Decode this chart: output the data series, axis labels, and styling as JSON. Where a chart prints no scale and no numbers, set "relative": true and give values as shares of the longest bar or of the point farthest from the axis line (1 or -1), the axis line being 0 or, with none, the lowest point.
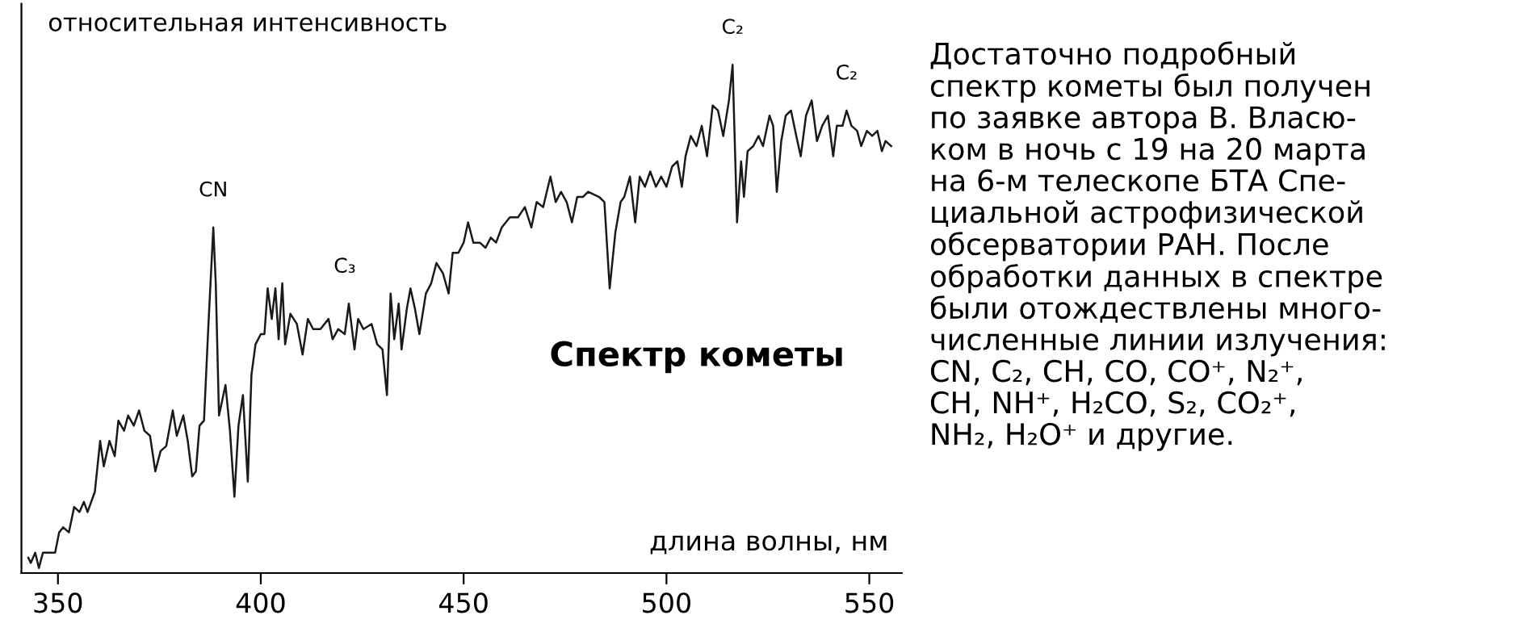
{
  "chart_data": {
    "type": "line",
    "relative": true,
    "title": "Спектр кометы",
    "xlabel": "длина волны, нм",
    "ylabel": "относительная интенсивность",
    "xlim": [
      341,
      558
    ],
    "xticks": [
      350,
      400,
      450,
      500,
      550
    ],
    "grid": false,
    "legend": false,
    "marker": "none",
    "line_style": "solid",
    "tick_labels": "x",
    "x": [
      342.7,
      343.3,
      344.4,
      345.3,
      346.3,
      348.0,
      349.3,
      350.3,
      351.3,
      352.7,
      354.0,
      355.3,
      356.4,
      357.3,
      359.1,
      360.4,
      361.3,
      362.7,
      364.0,
      364.9,
      366.3,
      367.3,
      368.7,
      370.0,
      371.3,
      372.7,
      374.0,
      375.3,
      376.7,
      378.3,
      379.3,
      380.9,
      382.0,
      383.1,
      384.0,
      384.9,
      386.0,
      387.1,
      388.3,
      388.9,
      389.7,
      391.3,
      392.4,
      393.5,
      394.5,
      395.6,
      396.8,
      397.7,
      398.7,
      400.0,
      400.9,
      401.7,
      402.7,
      403.6,
      404.4,
      405.3,
      406.0,
      407.3,
      408.9,
      410.3,
      411.6,
      412.9,
      414.7,
      416.7,
      417.7,
      419.1,
      420.7,
      421.7,
      423.1,
      424.0,
      425.3,
      427.3,
      428.7,
      430.0,
      431.1,
      432.0,
      432.9,
      434.0,
      434.7,
      436.0,
      436.9,
      438.0,
      439.1,
      440.7,
      442.0,
      443.3,
      444.9,
      446.3,
      447.3,
      448.7,
      450.0,
      451.1,
      452.4,
      454.0,
      455.4,
      456.7,
      458.0,
      459.4,
      461.4,
      463.4,
      465.1,
      466.7,
      468.0,
      469.6,
      471.4,
      472.7,
      474.0,
      475.4,
      476.7,
      478.0,
      479.4,
      480.7,
      483.4,
      484.7,
      486.0,
      487.4,
      488.7,
      489.6,
      491.0,
      492.3,
      493.4,
      494.7,
      496.0,
      497.4,
      498.7,
      500.0,
      501.4,
      502.7,
      503.8,
      504.7,
      506.0,
      507.4,
      508.7,
      510.0,
      511.4,
      512.7,
      514.0,
      515.4,
      516.3,
      517.4,
      518.4,
      519.1,
      520.0,
      521.4,
      522.7,
      523.8,
      525.4,
      526.3,
      527.2,
      528.3,
      529.4,
      530.7,
      532.0,
      533.1,
      534.4,
      535.8,
      537.1,
      538.4,
      539.8,
      541.1,
      542.0,
      543.4,
      544.4,
      545.6,
      547.0,
      548.0,
      549.4,
      550.7,
      552.0,
      553.1,
      554.0,
      555.4
    ],
    "series": [
      {
        "color": "#1a1a1a",
        "values": [
          0.03,
          0.02,
          0.04,
          0.01,
          0.04,
          0.04,
          0.04,
          0.08,
          0.09,
          0.08,
          0.13,
          0.12,
          0.14,
          0.12,
          0.16,
          0.26,
          0.21,
          0.26,
          0.23,
          0.3,
          0.28,
          0.31,
          0.29,
          0.32,
          0.28,
          0.27,
          0.2,
          0.24,
          0.25,
          0.32,
          0.27,
          0.31,
          0.26,
          0.19,
          0.2,
          0.29,
          0.3,
          0.49,
          0.68,
          0.57,
          0.31,
          0.37,
          0.28,
          0.15,
          0.29,
          0.35,
          0.18,
          0.39,
          0.45,
          0.47,
          0.47,
          0.56,
          0.5,
          0.56,
          0.46,
          0.57,
          0.45,
          0.51,
          0.49,
          0.43,
          0.5,
          0.48,
          0.48,
          0.5,
          0.46,
          0.48,
          0.47,
          0.53,
          0.44,
          0.5,
          0.48,
          0.49,
          0.45,
          0.44,
          0.35,
          0.55,
          0.46,
          0.53,
          0.44,
          0.52,
          0.56,
          0.52,
          0.47,
          0.55,
          0.57,
          0.61,
          0.59,
          0.55,
          0.63,
          0.63,
          0.65,
          0.69,
          0.65,
          0.65,
          0.64,
          0.66,
          0.65,
          0.68,
          0.7,
          0.7,
          0.72,
          0.68,
          0.73,
          0.72,
          0.78,
          0.73,
          0.75,
          0.73,
          0.69,
          0.74,
          0.74,
          0.75,
          0.74,
          0.73,
          0.56,
          0.67,
          0.73,
          0.74,
          0.78,
          0.69,
          0.78,
          0.76,
          0.79,
          0.76,
          0.78,
          0.76,
          0.8,
          0.81,
          0.76,
          0.82,
          0.86,
          0.84,
          0.88,
          0.82,
          0.92,
          0.91,
          0.86,
          0.93,
          1.0,
          0.69,
          0.81,
          0.74,
          0.83,
          0.84,
          0.86,
          0.84,
          0.9,
          0.88,
          0.75,
          0.85,
          0.9,
          0.91,
          0.86,
          0.82,
          0.9,
          0.93,
          0.85,
          0.88,
          0.9,
          0.82,
          0.88,
          0.88,
          0.91,
          0.88,
          0.87,
          0.84,
          0.87,
          0.86,
          0.87,
          0.83,
          0.85,
          0.84
        ]
      }
    ],
    "annotations": [
      {
        "text": "CN",
        "x": 388.3,
        "y": 0.68
      },
      {
        "text": "C₃",
        "x": 420.7,
        "y": 0.53
      },
      {
        "text": "C₂",
        "x": 516.3,
        "y": 1.0
      },
      {
        "text": "C₂",
        "x": 544.4,
        "y": 0.91
      },
      "Достаточно подробный\nспектр кометы был получен\nпо заявке автора В. Власю-\nком в ночь с 19 на 20 марта\nна 6-м телескопе БТА Спе-\nциальной астрофизической\nобсерватории РАН. После\nобработки данных в спектре\nбыли отождествлены много-\nчисленные линии излучения:\nCN, C₂, CH, CO, CO⁺, N₂⁺,\nCH, NH⁺, H₂CO, S₂, CO₂⁺,\nNH₂, H₂O⁺ и другие."
    ]
  }
}
